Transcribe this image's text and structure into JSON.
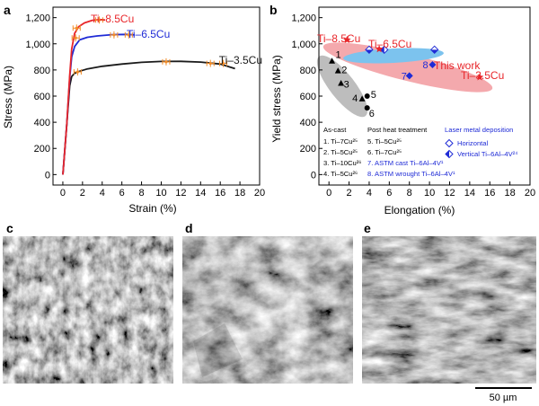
{
  "figure": {
    "panel_labels": [
      "a",
      "b",
      "c",
      "d",
      "e"
    ],
    "scale_bar_label": "50 µm"
  },
  "colors": {
    "black": "#1a1a1a",
    "red": "#e8262a",
    "blue": "#1f2bd6",
    "orange": "#f28c28",
    "pink_band": "#f4a9ad",
    "blue_band": "#7cc3ee",
    "gray_band": "#bdbdbd"
  },
  "chart_data": [
    {
      "type": "line",
      "panel": "a",
      "title": "",
      "xlabel": "Strain (%)",
      "ylabel": "Stress (MPa)",
      "xlim": [
        -1,
        20
      ],
      "ylim": [
        -80,
        1280
      ],
      "xticks": [
        "0",
        "2",
        "4",
        "6",
        "8",
        "10",
        "12",
        "14",
        "16",
        "18",
        "20"
      ],
      "yticks": [
        "0",
        "200",
        "400",
        "600",
        "800",
        "1,000",
        "1,200"
      ],
      "series": [
        {
          "name": "Ti–8.5Cu",
          "color": "#e8262a",
          "x": [
            0,
            0.4,
            0.7,
            0.9,
            1.2,
            1.6,
            2.2,
            3.0,
            3.8,
            4.3
          ],
          "y": [
            0,
            380,
            760,
            960,
            1080,
            1130,
            1160,
            1180,
            1185,
            1182
          ]
        },
        {
          "name": "Ti–6.5Cu",
          "color": "#1f2bd6",
          "x": [
            0,
            0.4,
            0.7,
            0.9,
            1.2,
            1.7,
            2.5,
            3.5,
            5.0,
            6.5,
            7.3
          ],
          "y": [
            0,
            380,
            740,
            900,
            980,
            1030,
            1050,
            1060,
            1070,
            1072,
            1068
          ]
        },
        {
          "name": "Ti–3.5Cu",
          "color": "#1a1a1a",
          "x": [
            0,
            0.4,
            0.7,
            0.9,
            1.2,
            1.7,
            2.5,
            4,
            6,
            8,
            10,
            12,
            14,
            16,
            17.5
          ],
          "y": [
            0,
            380,
            680,
            750,
            775,
            790,
            808,
            828,
            845,
            858,
            865,
            866,
            860,
            845,
            810
          ]
        }
      ],
      "error_bars": {
        "color": "#f28c28",
        "points": [
          {
            "x": 1.4,
            "y": 1120
          },
          {
            "x": 1.3,
            "y": 1045
          },
          {
            "x": 1.5,
            "y": 785
          },
          {
            "x": 3.7,
            "y": 1182
          },
          {
            "x": 5.2,
            "y": 1068
          },
          {
            "x": 6.7,
            "y": 1068
          },
          {
            "x": 10.5,
            "y": 862
          },
          {
            "x": 15.0,
            "y": 850
          },
          {
            "x": 16.3,
            "y": 850
          }
        ]
      }
    },
    {
      "type": "scatter",
      "panel": "b",
      "title": "",
      "xlabel": "Elongation (%)",
      "ylabel": "Yield stress (MPa)",
      "xlim": [
        -1,
        20
      ],
      "ylim": [
        -80,
        1280
      ],
      "xticks": [
        "0",
        "2",
        "4",
        "6",
        "8",
        "10",
        "12",
        "14",
        "16",
        "18",
        "20"
      ],
      "yticks": [
        "0",
        "200",
        "400",
        "600",
        "800",
        "1,000",
        "1,200"
      ],
      "this_work": [
        {
          "label": "Ti–8.5Cu",
          "x": 1.8,
          "y": 1030
        },
        {
          "label": "Ti–6.5Cu",
          "x": 5.0,
          "y": 960
        },
        {
          "label": "Ti–3.5Cu",
          "x": 15.0,
          "y": 745
        }
      ],
      "this_work_label": "This work",
      "literature": [
        {
          "num": "1",
          "x": 0.3,
          "y": 870,
          "marker": "triangle"
        },
        {
          "num": "2",
          "x": 0.9,
          "y": 795,
          "marker": "triangle"
        },
        {
          "num": "3",
          "x": 1.2,
          "y": 700,
          "marker": "triangle"
        },
        {
          "num": "4",
          "x": 3.3,
          "y": 580,
          "marker": "triangle"
        },
        {
          "num": "5",
          "x": 3.8,
          "y": 600,
          "marker": "circle"
        },
        {
          "num": "6",
          "x": 3.8,
          "y": 510,
          "marker": "circle"
        },
        {
          "num": "7",
          "x": 8.0,
          "y": 755,
          "marker": "diamond"
        },
        {
          "num": "8",
          "x": 10.3,
          "y": 840,
          "marker": "diamond"
        }
      ],
      "laser_points": [
        {
          "x": 4.0,
          "y": 955,
          "kind": "horizontal"
        },
        {
          "x": 5.5,
          "y": 955,
          "kind": "vertical"
        },
        {
          "x": 10.5,
          "y": 955,
          "kind": "horizontal"
        }
      ],
      "legend": {
        "as_cast_heading": "As-cast",
        "as_cast": [
          "1. Ti–7Cu²⁵",
          "2. Ti–5Cu²⁵",
          "3. Ti–10Cu²⁶",
          "4. Ti–5Cu²⁶"
        ],
        "post_heat_heading": "Post heat treatment",
        "post_heat": [
          "5. Ti–5Cu²⁵",
          "6. Ti–7Cu²⁵",
          "7. ASTM cast Ti–6Al–4V¹",
          "8. ASTM wrought Ti–6Al–4V¹"
        ],
        "laser_heading": "Laser metal deposition",
        "laser": [
          "Horizontal",
          "Vertical Ti–6Al–4V²⁴"
        ]
      }
    }
  ]
}
